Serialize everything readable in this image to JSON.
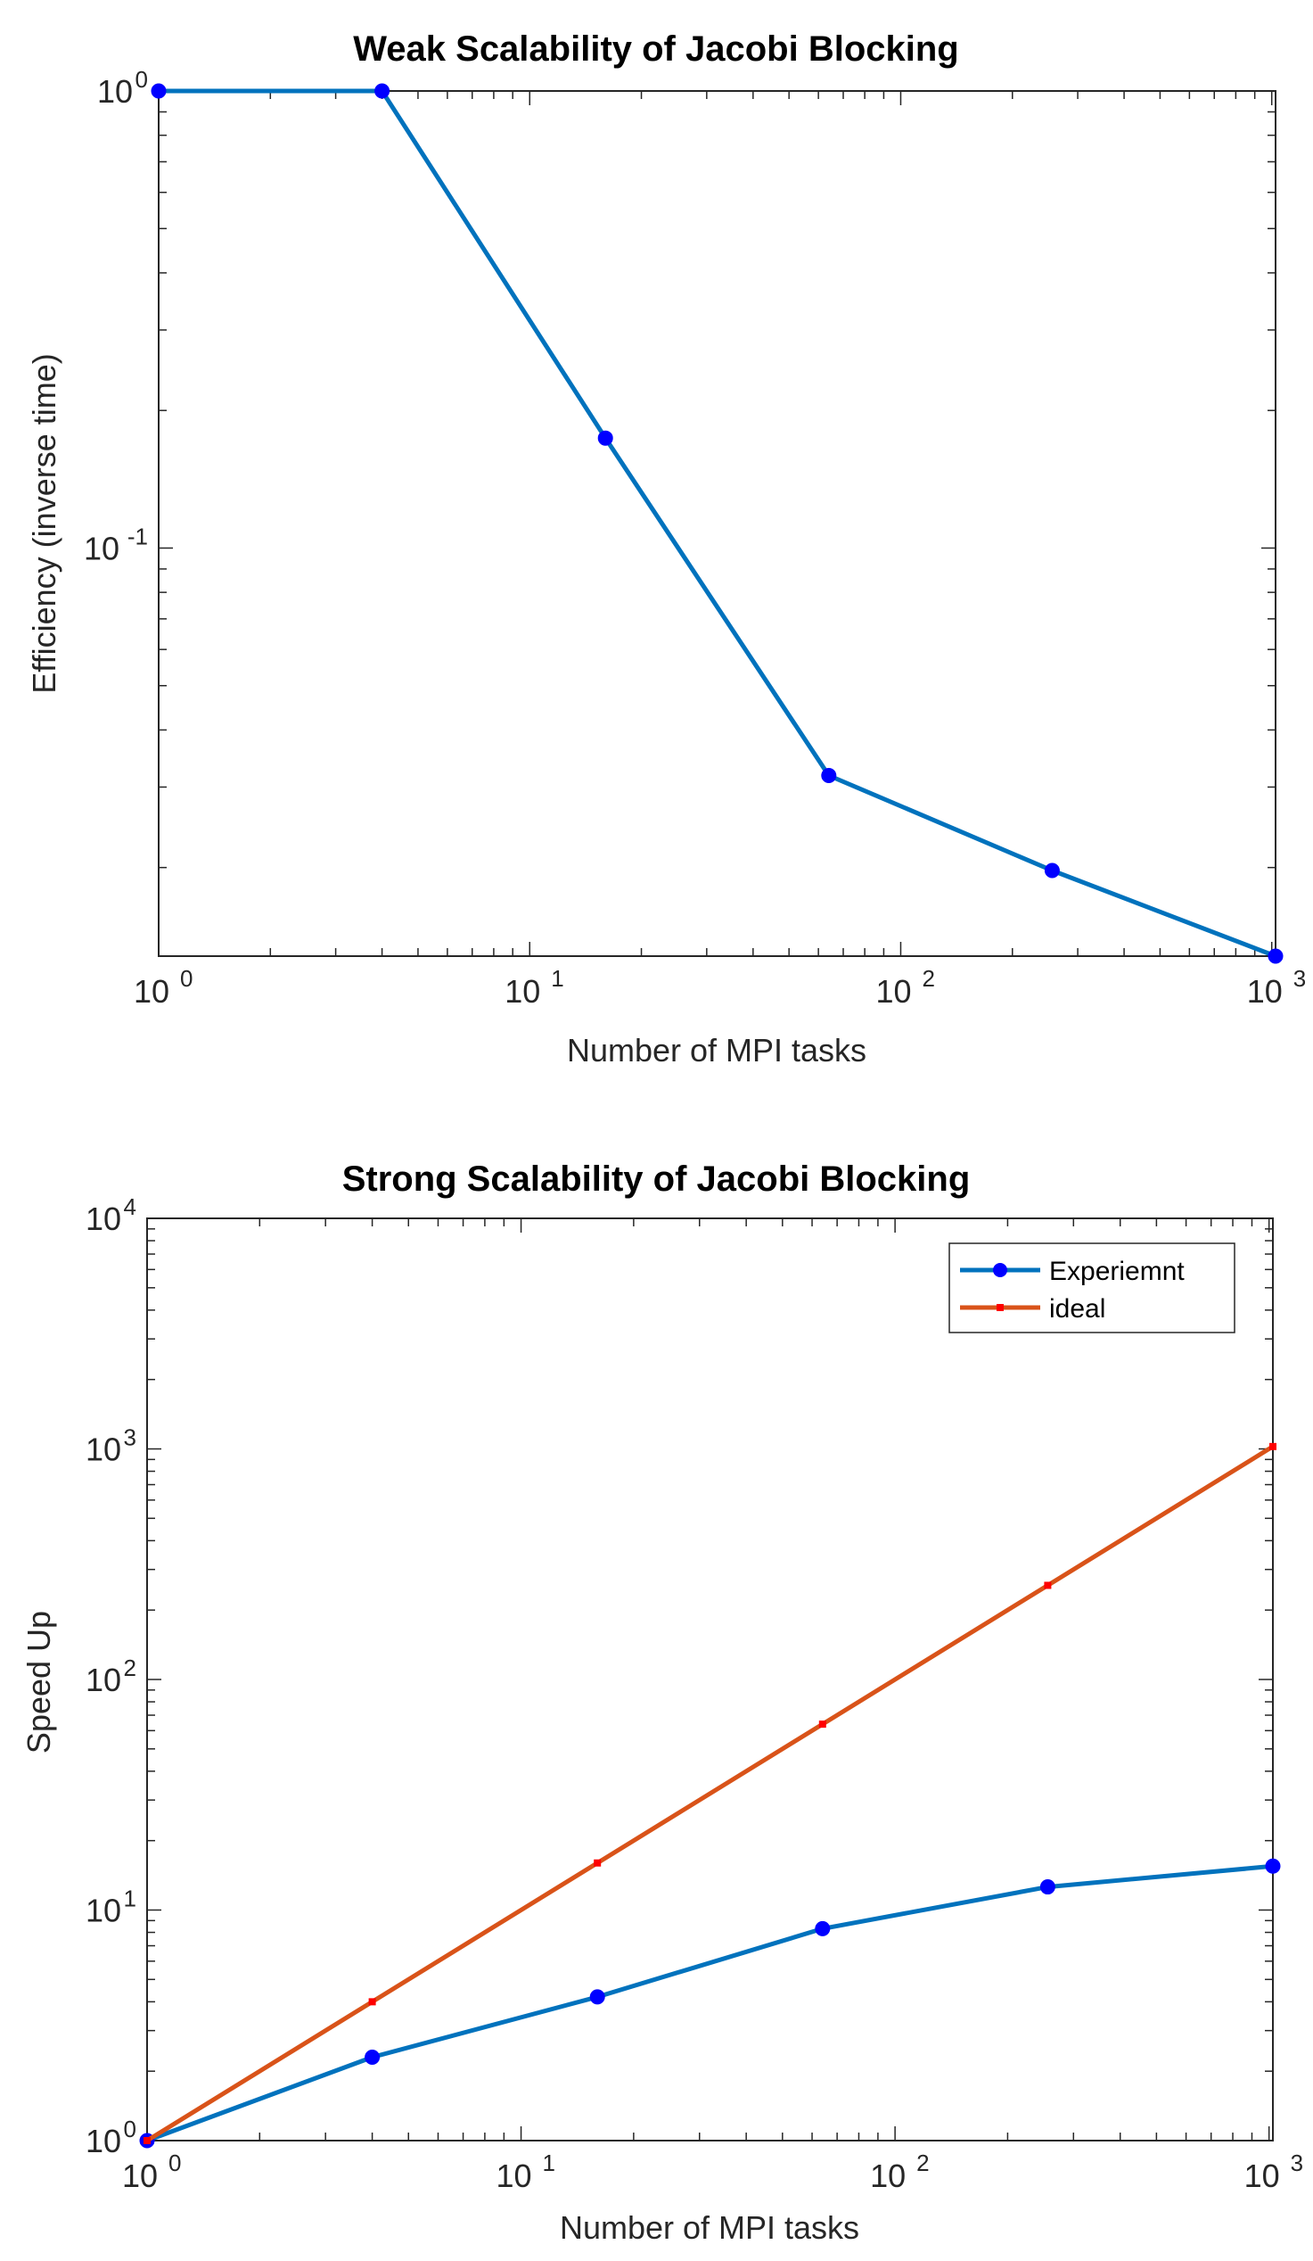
{
  "chart_data": [
    {
      "type": "line",
      "title": "Weak Scalability of Jacobi Blocking",
      "xlabel": "Number of MPI tasks",
      "ylabel": "Efficiency (inverse time)",
      "xscale": "log",
      "yscale": "log",
      "xlim": [
        1,
        1024
      ],
      "ylim": [
        0.0128,
        1.0
      ],
      "xticks": [
        {
          "base": "10",
          "exp": "0",
          "value": 1
        },
        {
          "base": "10",
          "exp": "1",
          "value": 10
        },
        {
          "base": "10",
          "exp": "2",
          "value": 100
        },
        {
          "base": "10",
          "exp": "3",
          "value": 1000
        }
      ],
      "yticks": [
        {
          "base": "10",
          "exp": "-1",
          "value": 0.1
        },
        {
          "base": "10",
          "exp": "0",
          "value": 1
        }
      ],
      "grid": false,
      "series": [
        {
          "color": "#0072BD",
          "marker_color": "#0000FF",
          "marker": "circle",
          "x": [
            1,
            4,
            16,
            64,
            256,
            1024
          ],
          "y": [
            1.0,
            1.0,
            0.174,
            0.0318,
            0.0197,
            0.0128
          ]
        }
      ]
    },
    {
      "type": "line",
      "title": "Strong Scalability of Jacobi Blocking",
      "xlabel": "Number of MPI tasks",
      "ylabel": "Speed Up",
      "xscale": "log",
      "yscale": "log",
      "xlim": [
        1,
        1024
      ],
      "ylim": [
        1,
        10000
      ],
      "xticks": [
        {
          "base": "10",
          "exp": "0",
          "value": 1
        },
        {
          "base": "10",
          "exp": "1",
          "value": 10
        },
        {
          "base": "10",
          "exp": "2",
          "value": 100
        },
        {
          "base": "10",
          "exp": "3",
          "value": 1000
        }
      ],
      "yticks": [
        {
          "base": "10",
          "exp": "0",
          "value": 1
        },
        {
          "base": "10",
          "exp": "1",
          "value": 10
        },
        {
          "base": "10",
          "exp": "2",
          "value": 100
        },
        {
          "base": "10",
          "exp": "3",
          "value": 1000
        },
        {
          "base": "10",
          "exp": "4",
          "value": 10000
        }
      ],
      "grid": false,
      "legend": "top-right",
      "series": [
        {
          "name": "Experiemnt",
          "color": "#0072BD",
          "marker_color": "#0000FF",
          "marker": "circle",
          "x": [
            1,
            4,
            16,
            64,
            256,
            1024
          ],
          "y": [
            1.0,
            2.3,
            4.2,
            8.3,
            12.6,
            15.5
          ]
        },
        {
          "name": "ideal",
          "color": "#D95319",
          "marker_color": "#FF0000",
          "marker": "star",
          "x": [
            1,
            4,
            16,
            64,
            256,
            1024
          ],
          "y": [
            1,
            4,
            16,
            64,
            256,
            1024
          ]
        }
      ]
    }
  ]
}
